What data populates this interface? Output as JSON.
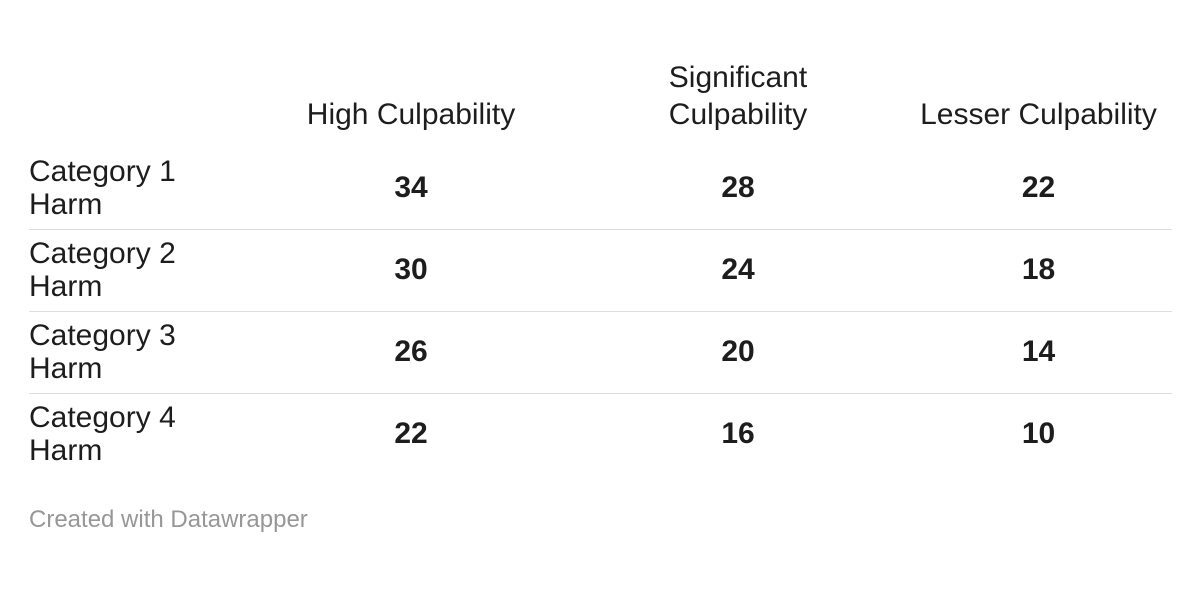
{
  "chart_data": {
    "type": "table",
    "title": "",
    "columns": [
      "High Culpability",
      "Significant Culpability",
      "Lesser Culpability"
    ],
    "columns_display": [
      "High Culpability",
      "Significant\nCulpability",
      "Lesser Culpability"
    ],
    "row_header": "",
    "rows": [
      {
        "label": "Category 1 Harm",
        "label_display": "Category 1\nHarm",
        "values": [
          34,
          28,
          22
        ]
      },
      {
        "label": "Category 2 Harm",
        "label_display": "Category 2\nHarm",
        "values": [
          30,
          24,
          18
        ]
      },
      {
        "label": "Category 3 Harm",
        "label_display": "Category 3\nHarm",
        "values": [
          26,
          20,
          14
        ]
      },
      {
        "label": "Category 4 Harm",
        "label_display": "Category 4\nHarm",
        "values": [
          22,
          16,
          10
        ]
      }
    ],
    "layout": {
      "grid": "horizontal-row-dividers",
      "legend": "none"
    }
  },
  "footer": {
    "credit": "Created with Datawrapper"
  },
  "colors": {
    "background": "#ffffff",
    "text": "#1d1d1d",
    "divider": "#dedede",
    "footer_text": "#979797"
  }
}
